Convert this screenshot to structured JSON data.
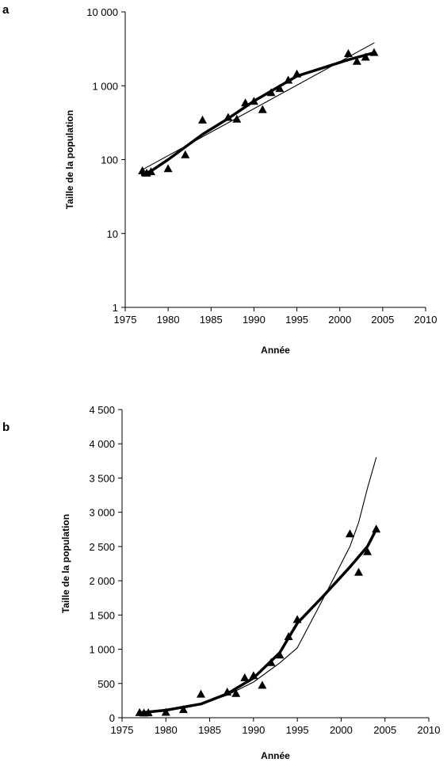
{
  "chart_data": [
    {
      "panel": "a",
      "type": "scatter",
      "xlabel": "Année",
      "ylabel": "Taille de la population",
      "xlim": [
        1975,
        2010
      ],
      "ylim": [
        1,
        10000
      ],
      "yscale": "log",
      "xticks": [
        1975,
        1980,
        1985,
        1990,
        1995,
        2000,
        2005,
        2010
      ],
      "xtick_labels": [
        "1975",
        "1980",
        "1985",
        "1990",
        "1995",
        "2000",
        "2005",
        "2010"
      ],
      "yticks": [
        1,
        10,
        100,
        1000,
        10000
      ],
      "ytick_labels": [
        "1",
        "10",
        "100",
        "1 000",
        "10 000"
      ],
      "grid": false,
      "points": {
        "x": [
          1977,
          1977.5,
          1978,
          1980,
          1982,
          1984,
          1987,
          1988,
          1989,
          1990,
          1991,
          1992,
          1993,
          1994,
          1995,
          2001,
          2002,
          2003,
          2004
        ],
        "y": [
          70,
          65,
          68,
          75,
          115,
          340,
          370,
          350,
          580,
          610,
          470,
          800,
          910,
          1180,
          1430,
          2700,
          2120,
          2420,
          2800
        ]
      },
      "series": [
        {
          "style": "thick",
          "x": [
            1977,
            1978,
            1980,
            1984,
            1987,
            1990,
            1995,
            2001,
            2004
          ],
          "y": [
            62,
            70,
            100,
            220,
            360,
            620,
            1350,
            2250,
            2800
          ]
        },
        {
          "style": "thin",
          "x": [
            1977,
            2004
          ],
          "y": [
            73,
            3800
          ]
        }
      ]
    },
    {
      "panel": "b",
      "type": "scatter",
      "xlabel": "Année",
      "ylabel": "Taille de la population",
      "xlim": [
        1975,
        2010
      ],
      "ylim": [
        0,
        4500
      ],
      "yscale": "linear",
      "xticks": [
        1975,
        1980,
        1985,
        1990,
        1995,
        2000,
        2005,
        2010
      ],
      "xtick_labels": [
        "1975",
        "1980",
        "1985",
        "1990",
        "1995",
        "2000",
        "2005",
        "2010"
      ],
      "yticks": [
        0,
        500,
        1000,
        1500,
        2000,
        2500,
        3000,
        3500,
        4000,
        4500
      ],
      "ytick_labels": [
        "0",
        "500",
        "1 000",
        "1 500",
        "2 000",
        "2 500",
        "3 000",
        "3 500",
        "4 000",
        "4 500"
      ],
      "grid": false,
      "points": {
        "x": [
          1977,
          1977.5,
          1978,
          1980,
          1982,
          1984,
          1987,
          1988,
          1989,
          1990,
          1991,
          1992,
          1993,
          1994,
          1995,
          2001,
          2002,
          2003,
          2004
        ],
        "y": [
          70,
          65,
          68,
          75,
          115,
          340,
          370,
          350,
          580,
          610,
          470,
          800,
          910,
          1180,
          1430,
          2680,
          2120,
          2420,
          2750
        ]
      },
      "series": [
        {
          "style": "thick",
          "x": [
            1977,
            1980,
            1984,
            1987,
            1990,
            1993,
            1995,
            1998,
            2001,
            2003,
            2004
          ],
          "y": [
            70,
            110,
            200,
            350,
            580,
            950,
            1380,
            1780,
            2200,
            2500,
            2750
          ]
        },
        {
          "style": "thin",
          "x": [
            1977,
            1980,
            1984,
            1987,
            1990,
            1993,
            1995,
            1998,
            2001,
            2002,
            2003,
            2004
          ],
          "y": [
            60,
            100,
            200,
            330,
            520,
            800,
            1020,
            1750,
            2500,
            2850,
            3350,
            3800
          ]
        }
      ]
    }
  ]
}
